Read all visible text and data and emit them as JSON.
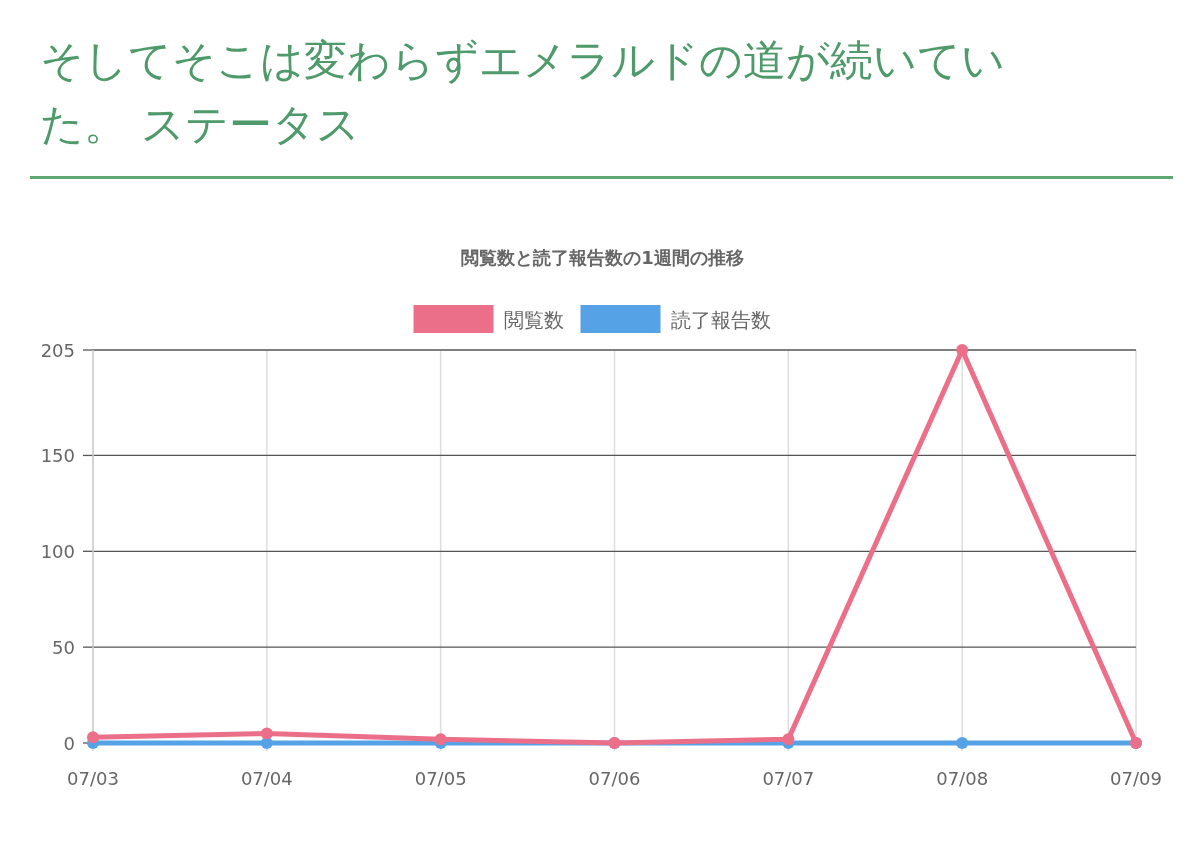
{
  "chart_data": {
    "type": "line",
    "title": "そしてそこは変わらずエメラルドの道が続いていた。 ステータス",
    "subtitle": "閲覧数と読了報告数の1週間の推移",
    "categories": [
      "07/03",
      "07/04",
      "07/05",
      "07/06",
      "07/07",
      "07/08",
      "07/09"
    ],
    "series": [
      {
        "name": "閲覧数",
        "color": "#ec6f89",
        "values": [
          3,
          5,
          2,
          0,
          2,
          205,
          0
        ]
      },
      {
        "name": "読了報告数",
        "color": "#56a2e7",
        "values": [
          0,
          0,
          0,
          0,
          0,
          0,
          0
        ]
      }
    ],
    "ylim": [
      0,
      205
    ],
    "yticks": [
      0,
      50,
      100,
      150,
      205
    ],
    "grid": true,
    "legend": "top",
    "marker": "circle",
    "line_style": "solid"
  }
}
